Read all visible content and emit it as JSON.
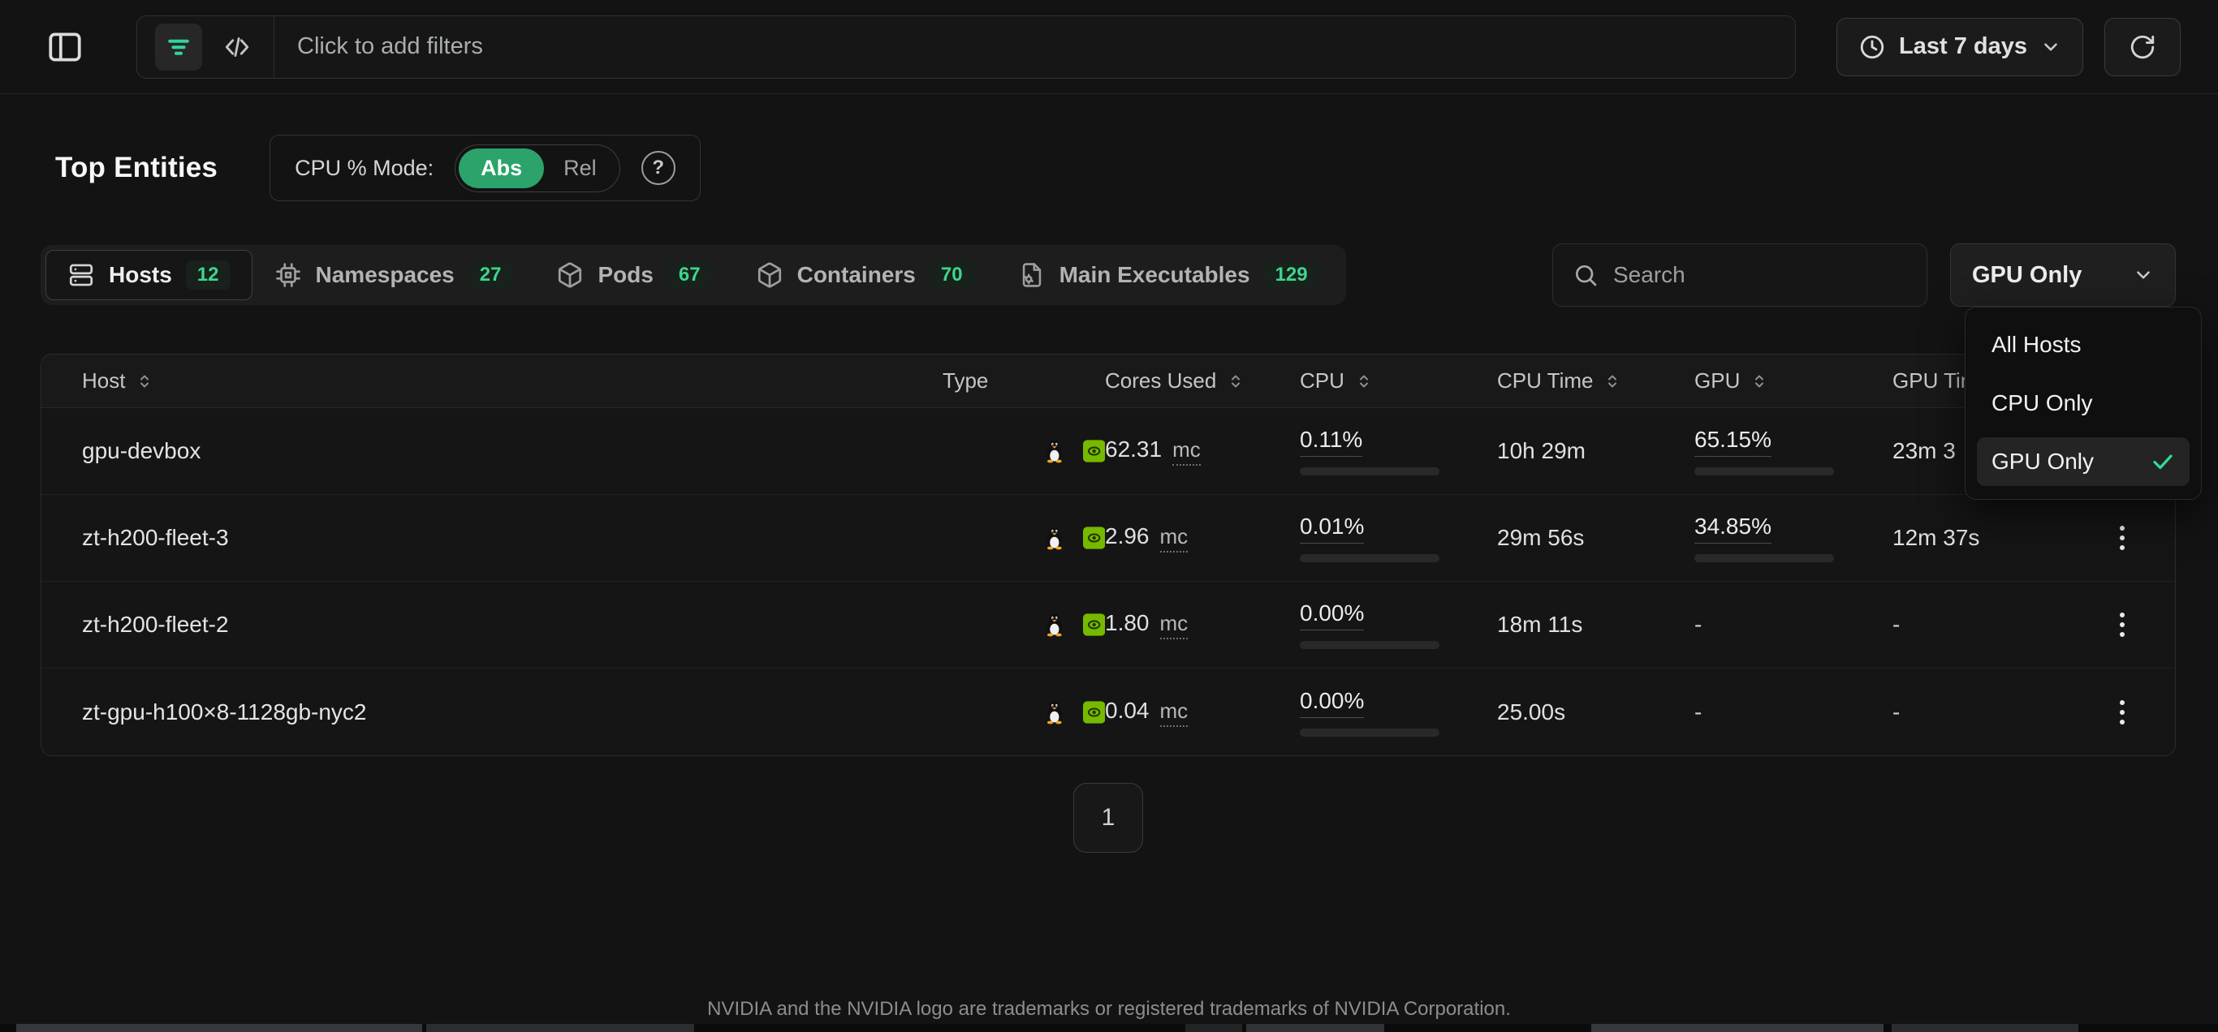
{
  "topbar": {
    "filter_placeholder": "Click to add filters",
    "time_range": "Last 7 days"
  },
  "header": {
    "title": "Top Entities",
    "cpu_mode_label": "CPU % Mode:",
    "cpu_mode_abs": "Abs",
    "cpu_mode_rel": "Rel"
  },
  "tabs": {
    "hosts": {
      "label": "Hosts",
      "count": "12"
    },
    "namespaces": {
      "label": "Namespaces",
      "count": "27"
    },
    "pods": {
      "label": "Pods",
      "count": "67"
    },
    "containers": {
      "label": "Containers",
      "count": "70"
    },
    "main_executables": {
      "label": "Main Executables",
      "count": "129"
    }
  },
  "toolbar": {
    "search_placeholder": "Search",
    "host_filter_value": "GPU Only"
  },
  "host_filter_menu": {
    "items": [
      {
        "label": "All Hosts",
        "selected": false
      },
      {
        "label": "CPU Only",
        "selected": false
      },
      {
        "label": "GPU Only",
        "selected": true
      }
    ]
  },
  "table": {
    "columns": {
      "host": "Host",
      "type": "Type",
      "cores_used": "Cores Used",
      "cpu": "CPU",
      "cpu_time": "CPU Time",
      "gpu": "GPU",
      "gpu_time": "GPU Time"
    },
    "rows": [
      {
        "host": "gpu-devbox",
        "os": "linux",
        "gpu_vendor": "nvidia",
        "cores_used": "62.31",
        "cores_unit": "mc",
        "cpu_pct": "0.11%",
        "cpu_bar_pct": 0.11,
        "cpu_time": "10h 29m",
        "gpu_pct": "65.15%",
        "gpu_bar_pct": 65.15,
        "gpu_time": "23m 3"
      },
      {
        "host": "zt-h200-fleet-3",
        "os": "linux",
        "gpu_vendor": "nvidia",
        "cores_used": "2.96",
        "cores_unit": "mc",
        "cpu_pct": "0.01%",
        "cpu_bar_pct": 0.01,
        "cpu_time": "29m 56s",
        "gpu_pct": "34.85%",
        "gpu_bar_pct": 34.85,
        "gpu_time": "12m 37s"
      },
      {
        "host": "zt-h200-fleet-2",
        "os": "linux",
        "gpu_vendor": "nvidia",
        "cores_used": "1.80",
        "cores_unit": "mc",
        "cpu_pct": "0.00%",
        "cpu_bar_pct": 0,
        "cpu_time": "18m 11s",
        "gpu_pct": "-",
        "gpu_time": "-"
      },
      {
        "host": "zt-gpu-h100×8-1128gb-nyc2",
        "os": "linux",
        "gpu_vendor": "nvidia",
        "cores_used": "0.04",
        "cores_unit": "mc",
        "cpu_pct": "0.00%",
        "cpu_bar_pct": 0,
        "cpu_time": "25.00s",
        "gpu_pct": "-",
        "gpu_time": "-"
      }
    ]
  },
  "pagination": {
    "page": "1"
  },
  "footer": {
    "disclaimer": "NVIDIA and the NVIDIA logo are trademarks or registered trademarks of NVIDIA Corporation."
  },
  "colors": {
    "accent_green": "#2ba36b",
    "bar_green": "#30d988",
    "badge_green": "#3dd68c",
    "nvidia_green": "#76b900",
    "filter_icon_green": "#34d399",
    "check_green": "#2edd92"
  }
}
